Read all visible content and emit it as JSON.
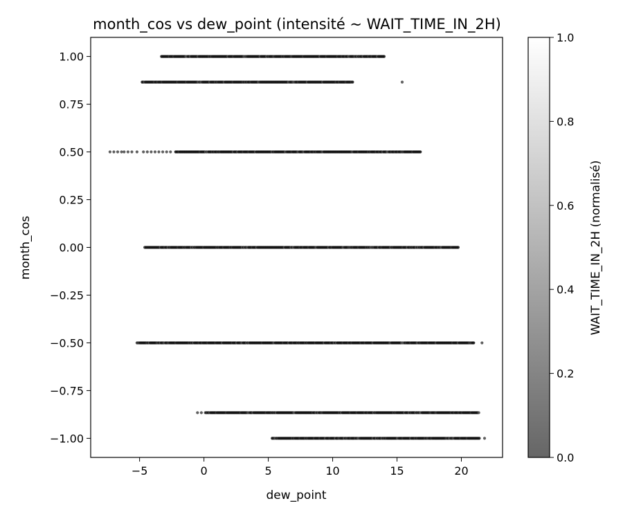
{
  "chart_data": {
    "type": "scatter",
    "title": "month_cos vs dew_point (intensité ~ WAIT_TIME_IN_2H)",
    "xlabel": "dew_point",
    "ylabel": "month_cos",
    "xlim": [
      -8.8,
      23.2
    ],
    "ylim": [
      -1.1,
      1.1
    ],
    "x_ticks": [
      {
        "value": -5,
        "label": "−5"
      },
      {
        "value": 0,
        "label": "0"
      },
      {
        "value": 5,
        "label": "5"
      },
      {
        "value": 10,
        "label": "10"
      },
      {
        "value": 15,
        "label": "15"
      },
      {
        "value": 20,
        "label": "20"
      }
    ],
    "y_ticks": [
      {
        "value": 1.0,
        "label": "1.00"
      },
      {
        "value": 0.75,
        "label": "0.75"
      },
      {
        "value": 0.5,
        "label": "0.50"
      },
      {
        "value": 0.25,
        "label": "0.25"
      },
      {
        "value": 0.0,
        "label": "0.00"
      },
      {
        "value": -0.25,
        "label": "−0.25"
      },
      {
        "value": -0.5,
        "label": "−0.50"
      },
      {
        "value": -0.75,
        "label": "−0.75"
      },
      {
        "value": -1.0,
        "label": "−1.00"
      }
    ],
    "grid": false,
    "series": [
      {
        "y": 1.0,
        "x_min": -3.3,
        "x_max": 14.0,
        "outliers": []
      },
      {
        "y": 0.866,
        "x_min": -4.8,
        "x_max": 11.6,
        "outliers": [
          15.4
        ]
      },
      {
        "y": 0.5,
        "x_min": -2.2,
        "x_max": 16.9,
        "outliers": [
          -7.3,
          -7.0,
          -6.7,
          -6.4,
          -6.2,
          -5.9,
          -5.6,
          -5.2,
          -4.7,
          -4.4,
          -4.1,
          -3.8,
          -3.5,
          -3.2,
          -2.9,
          -2.6
        ]
      },
      {
        "y": 0.0,
        "x_min": -4.6,
        "x_max": 19.8,
        "outliers": []
      },
      {
        "y": -0.5,
        "x_min": -5.2,
        "x_max": 21.0,
        "outliers": [
          21.6
        ]
      },
      {
        "y": -0.866,
        "x_min": 0.1,
        "x_max": 21.4,
        "outliers": [
          -0.5,
          -0.2
        ]
      },
      {
        "y": -1.0,
        "x_min": 5.3,
        "x_max": 21.4,
        "outliers": [
          21.8
        ]
      }
    ],
    "colorbar": {
      "label": "WAIT_TIME_IN_2H (normalisé)",
      "range": [
        0.0,
        1.0
      ],
      "ticks": [
        {
          "value": 0.0,
          "label": "0.0"
        },
        {
          "value": 0.2,
          "label": "0.2"
        },
        {
          "value": 0.4,
          "label": "0.4"
        },
        {
          "value": 0.6,
          "label": "0.6"
        },
        {
          "value": 0.8,
          "label": "0.8"
        },
        {
          "value": 1.0,
          "label": "1.0"
        }
      ],
      "color_low": "#666666",
      "color_high": "#ffffff"
    }
  }
}
